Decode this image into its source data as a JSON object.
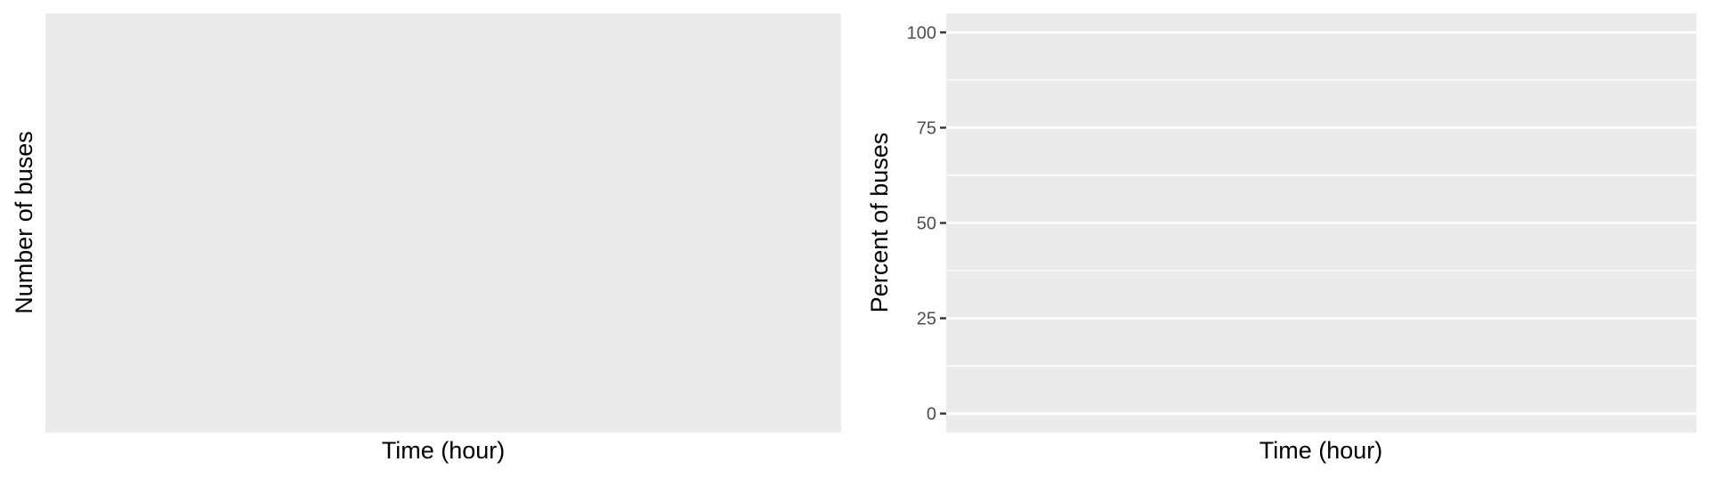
{
  "chart_data": [
    {
      "type": "line",
      "title": "",
      "xlabel": "Time (hour)",
      "ylabel": "Number of buses",
      "series": [],
      "grid": false,
      "panel_background": "#ebebeb",
      "y_ticks": []
    },
    {
      "type": "line",
      "title": "",
      "xlabel": "Time (hour)",
      "ylabel": "Percent of buses",
      "series": [],
      "grid": true,
      "panel_background": "#ebebeb",
      "ylim": [
        -5,
        105
      ],
      "y_ticks": [
        0,
        25,
        50,
        75,
        100
      ],
      "y_minor_ticks": [
        12.5,
        37.5,
        62.5,
        87.5
      ]
    }
  ]
}
